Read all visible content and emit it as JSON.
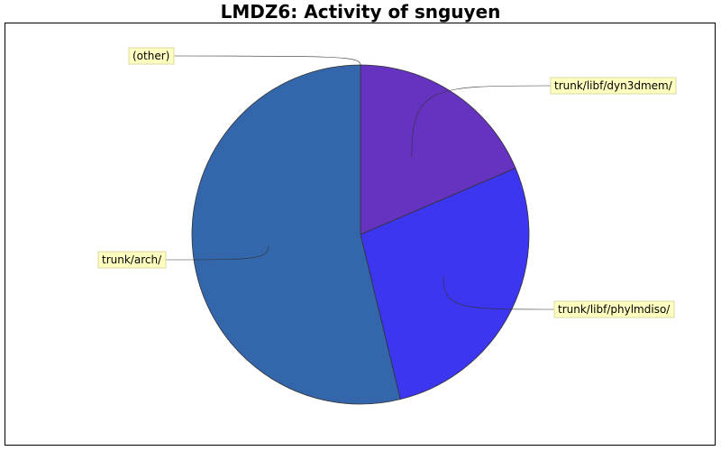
{
  "chart_data": {
    "type": "pie",
    "title": "LMDZ6: Activity of snguyen",
    "slices": [
      {
        "label": "trunk/libf/dyn3dmem/",
        "value": 18.6,
        "color": "#6633c0"
      },
      {
        "label": "trunk/libf/phylmdiso/",
        "value": 27.6,
        "color": "#3c36f0"
      },
      {
        "label": "trunk/arch/",
        "value": 53.8,
        "color": "#3366aa"
      },
      {
        "label": "(other)",
        "value": 0.0,
        "color": "#888888"
      }
    ],
    "legend": "none"
  }
}
